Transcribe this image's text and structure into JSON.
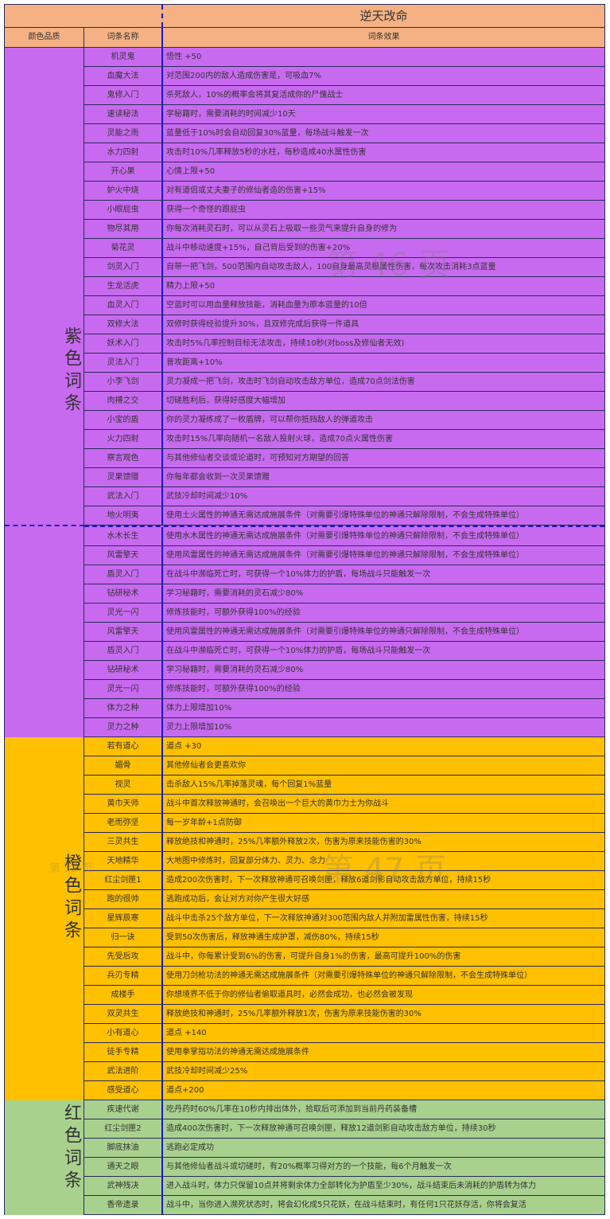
{
  "title": "逆天改命",
  "headers": {
    "quality": "颜色品质",
    "name": "词条名称",
    "effect": "词条效果"
  },
  "colors": {
    "header": "#F5B183",
    "purple": "#C86AF0",
    "orange": "#FFC000",
    "green": "#A9D18E"
  },
  "watermarks": [
    "第 46 页",
    "第 47 页",
    "第 32 页"
  ],
  "sections": [
    {
      "label": "紫色词条",
      "color": "#C86AF0",
      "rows": [
        [
          "机灵鬼",
          "悟性 +50"
        ],
        [
          "血魔大法",
          "对范围200内的敌人造成伤害是，可吸血7%"
        ],
        [
          "鬼修入门",
          "杀死敌人，10%的概率会将其复活成你的尸傀战士"
        ],
        [
          "速读秘法",
          "学秘籍时，需要消耗的时间减少10天"
        ],
        [
          "灵能之雨",
          "蓝量低于10%时会自动回复30%蓝量，每场战斗触发一次"
        ],
        [
          "水力四射",
          "攻击时10%几率释放5秒的水柱，每秒造成40水属性伤害"
        ],
        [
          "开心果",
          "心情上限+50"
        ],
        [
          "妒火中烧",
          "对有道侣或丈夫妻子的修仙者造的伤害+15%"
        ],
        [
          "小眼屁虫",
          "获得一个奇怪的跟屁虫"
        ],
        [
          "物尽其用",
          "你每次消耗灵石时，可以从灵石上吸取一些灵气来提升自身的修为"
        ],
        [
          "菊花灵",
          "战斗中移动速度+15%，自己背后受到的伤害+20%"
        ],
        [
          "剑灵入门",
          "自带一把飞剑，500范围内自动攻击敌人，100自身最高灵根属性伤害，每次攻击消耗3点蓝量"
        ],
        [
          "生龙活虎",
          "精力上限+50"
        ],
        [
          "血灵入门",
          "空蓝时可以用血量释放技能，消耗血量为原本蓝量的10倍"
        ],
        [
          "双修大法",
          "双修时获得经验提升30%，且双修完成后获得一件道具"
        ],
        [
          "妖术入门",
          "攻击时5%几率控制目标无法攻击，持续10秒(对boss及修仙者无效)"
        ],
        [
          "灵法入门",
          "普攻距离+10%"
        ],
        [
          "小李飞剑",
          "灵力凝成一把飞剑，攻击时飞剑自动攻击敌方单位，造成70点剑法伤害"
        ],
        [
          "肉搏之交",
          "切磋胜利后，获得好感度大幅增加"
        ],
        [
          "小宝的盾",
          "你的灵力凝练成了一枚盾牌，可以帮你抵挡敌人的弹道攻击"
        ],
        [
          "火力四射",
          "攻击时15%几率向随机一名敌人投射火球，造成70点火属性伤害"
        ],
        [
          "察言观色",
          "与其他修仙者交谈或论道时，可预知对方期望的回答"
        ],
        [
          "灵果馈赠",
          "你每年都会收到一次灵果馈赠"
        ],
        [
          "武法入门",
          "武技冷却时间减少10%"
        ],
        [
          "地火明夷",
          "使用土火属性的神通无需达成施展条件（对需要引爆特殊单位的神通只解除限制，不会生成特殊单位）"
        ],
        [
          "水木长生",
          "使用水木属性的神通无需达成施展条件（对需要引爆特殊单位的神通只解除限制，不会生成特殊单位）"
        ],
        [
          "风雷擎天",
          "使用风雷属性的神通无需达成施展条件（对需要引爆特殊单位的神通只解除限制，不会生成特殊单位）"
        ],
        [
          "盾灵入门",
          "在战斗中濒临死亡时，可获得一个10%体力的护盾，每场战斗只能触发一次"
        ],
        [
          "钻研秘术",
          "学习秘籍时，需要消耗的灵石减少80%"
        ],
        [
          "灵光一闪",
          "修炼技能时，可额外获得100%的经验"
        ]
      ]
    },
    {
      "label": "",
      "color": "#C86AF0",
      "rows": [
        [
          "风雷擎天",
          "使用风雷属性的神通无需达成施展条件（对需要引爆特殊单位的神通只解除限制，不会生成特殊单位）"
        ],
        [
          "盾灵入门",
          "在战斗中濒临死亡时，可获得一个10%体力的护盾，每场战斗只能触发一次"
        ],
        [
          "钻研秘术",
          "学习秘籍时，需要消耗的灵石减少80%"
        ],
        [
          "灵光一闪",
          "修炼技能时，可额外获得100%的经验"
        ],
        [
          "体力之种",
          "体力上限增加10%"
        ],
        [
          "灵力之种",
          "灵力上限增加10%"
        ]
      ]
    },
    {
      "label": "橙色词条",
      "color": "#FFC000",
      "rows": [
        [
          "若有道心",
          "道点 +30"
        ],
        [
          "媚骨",
          "其他修仙者会更喜欢你"
        ],
        [
          "视灵",
          "击杀敌人15%几率掉落灵魂，每个回复1%蓝量"
        ],
        [
          "黄巾天师",
          "战斗中首次释放神通时，会召唤出一个巨大的黄巾力士为你战斗"
        ],
        [
          "老而弥坚",
          "每一岁年龄+1点防御"
        ],
        [
          "三灵共生",
          "释放绝技和神通时，25%几率额外释放2次，伤害为原来技能伤害的30%"
        ],
        [
          "天地精华",
          "大地图中修炼时，回复部分体力、灵力、念力"
        ],
        [
          "红尘剑匣1",
          "造成200次伤害时，下一次释放神通可召唤剑匣，释放6道剑影自动攻击敌方单位，持续15秒"
        ],
        [
          "跑的很帅",
          "逃跑成功后，会让对方对你产生很大好感"
        ],
        [
          "星辉辰寒",
          "战斗中击杀25个敌方单位，下一次释放神通对300范围内敌人并附加雷属性伤害，持续15秒"
        ],
        [
          "归一诀",
          "受到50次伤害后，释放神通生成护罩，减伤80%，持续15秒"
        ],
        [
          "先受后攻",
          "战斗中，你每累计受到6%的伤害，可提升自身1%的伤害，最高可提升100%的伤害"
        ],
        [
          "兵刃专精",
          "使用刀剑枪功法的神通无需达成施展条件（对需要引爆特殊单位的神通只解除限制，不会生成特殊单位）"
        ],
        [
          "成楼手",
          "你想境界不低于你的修仙者偷取道具时，必然会成功，也必然会被发现"
        ],
        [
          "双灵共生",
          "释放绝技和神通时，25%几率额外释放1次，伤害为原来技能伤害的30%"
        ],
        [
          "小有道心",
          "道点 +140"
        ],
        [
          "徒手专精",
          "使用拳掌指功法的神通无需达成施展条件"
        ],
        [
          "武法进阶",
          "武技冷却时间减少25%"
        ],
        [
          "感受道心",
          "道点+200"
        ]
      ]
    },
    {
      "label": "红色词条",
      "color": "#A9D18E",
      "rows": [
        [
          "疾速代谢",
          "吃丹药时60%几率在10秒内排出体外，拾取后可添加到当前丹药装备槽"
        ],
        [
          "红尘剑匣2",
          "造成400次伤害时，下一次释放神通可召唤剑匣，释放12道剑影自动攻击敌方单位，持续30秒"
        ],
        [
          "脚底抹油",
          "逃跑必定成功"
        ],
        [
          "通天之眼",
          "与其他修仙者战斗或切磋时，有20%概率习得对方的一个技能，每6个月触发一次"
        ],
        [
          "武神残决",
          "进入战斗时，体力只保留10点并将剩余体力全部转化为护盾至少30%，战斗结束后未消耗的护盾转为体力"
        ],
        [
          "香帝遗录",
          "战斗中，当你进入濒死状态时，将会幻化成5只花妖，在战斗结束时，有任何1只花妖存活，你将会复活"
        ]
      ]
    }
  ]
}
